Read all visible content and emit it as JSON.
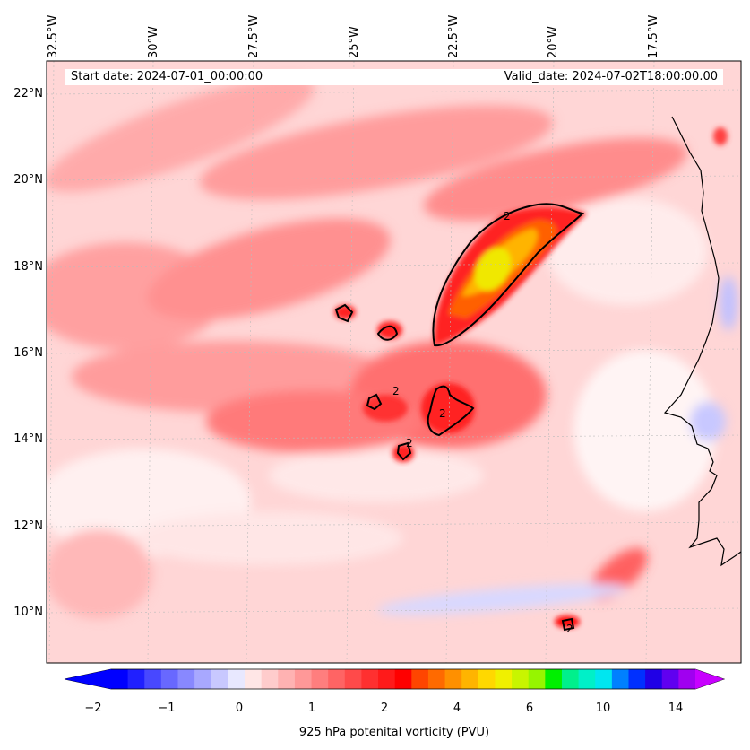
{
  "map": {
    "start_label": "Start date: 2024-07-01_00:00:00",
    "valid_label": "Valid_date: 2024-07-02T18:00:00.00",
    "projection_lon_labels": [
      "32.5°W",
      "30°W",
      "27.5°W",
      "25°W",
      "22.5°W",
      "20°W",
      "17.5°W"
    ],
    "lat_labels": [
      "22°N",
      "20°N",
      "18°N",
      "16°N",
      "14°N",
      "12°N",
      "10°N"
    ],
    "contour_label": "2",
    "field": "925 hPa potential vorticity",
    "colors": {
      "neg_strong": "#0000ff",
      "pos_weak": "#ffd0d0",
      "pos_mid": "#ff4040",
      "pos_strong": "#ff0000",
      "peak": "#ffd700",
      "coast": "#000000"
    }
  },
  "colorbar": {
    "label": "925 hPa potenital vorticity (PVU)",
    "ticks": [
      "−2",
      "−1",
      "0",
      "1",
      "2",
      "4",
      "6",
      "10",
      "14"
    ],
    "colors": [
      "#0000ff",
      "#2020ff",
      "#4848ff",
      "#6868ff",
      "#8888ff",
      "#a8a8ff",
      "#c8c8ff",
      "#e8e8ff",
      "#ffe6e6",
      "#ffcccc",
      "#ffb2b2",
      "#ff9898",
      "#ff7e7e",
      "#ff6464",
      "#ff4a4a",
      "#ff3030",
      "#ff1a1a",
      "#ff0000",
      "#ff4500",
      "#ff6a00",
      "#ff9000",
      "#ffb400",
      "#ffd800",
      "#f0f000",
      "#c8f500",
      "#96f500",
      "#00f000",
      "#00f08c",
      "#00f0c8",
      "#00e6f0",
      "#0080ff",
      "#0030ff",
      "#2000e6",
      "#6000f0",
      "#a000f0"
    ],
    "extend_low": "#0000ff",
    "extend_high": "#c800ff"
  }
}
